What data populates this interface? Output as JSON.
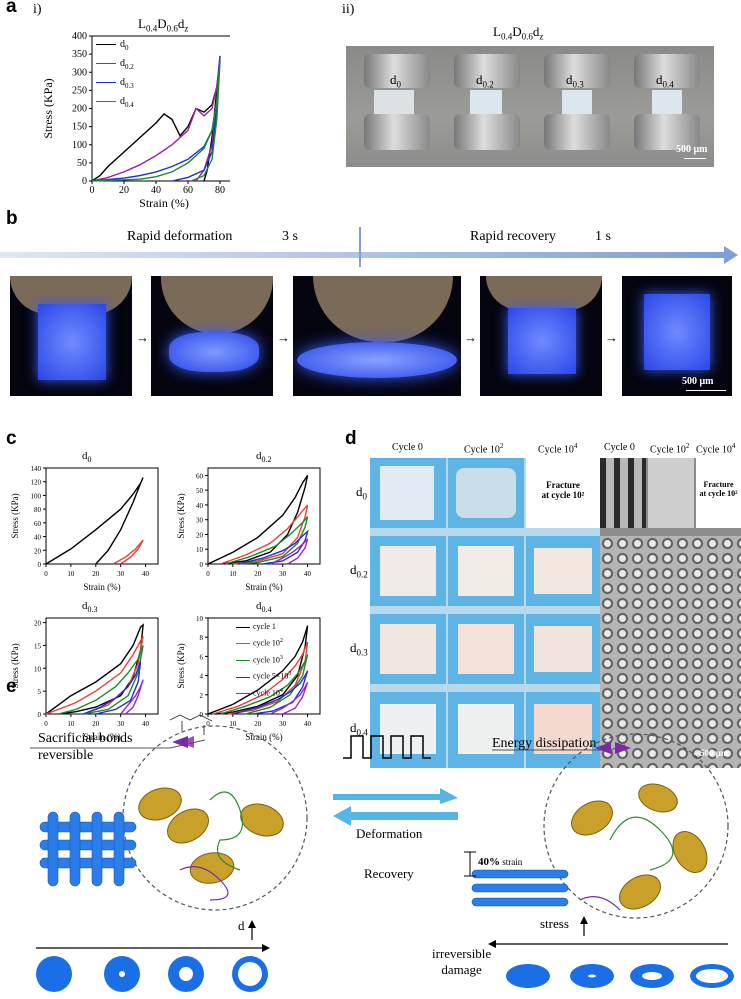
{
  "panel_a": {
    "label": "a",
    "sub_i": "i)",
    "sub_ii": "ii)",
    "title_base": "L",
    "title_sub1": "0.4",
    "title_mid": "D",
    "title_sub2": "0.6",
    "title_end": "d",
    "title_sub3": "z",
    "photo_labels": [
      {
        "base": "d",
        "sub": "0"
      },
      {
        "base": "d",
        "sub": "0.2"
      },
      {
        "base": "d",
        "sub": "0.3"
      },
      {
        "base": "d",
        "sub": "0.4"
      }
    ],
    "scale_bar": "500 μm"
  },
  "panel_b": {
    "label": "b",
    "left_text": "Rapid deformation",
    "left_time": "3 s",
    "right_text": "Rapid recovery",
    "right_time": "1 s",
    "arrow": "→",
    "scale_bar": "500 μm"
  },
  "panel_c": {
    "label": "c",
    "titles": [
      {
        "base": "d",
        "sub": "0"
      },
      {
        "base": "d",
        "sub": "0.2"
      },
      {
        "base": "d",
        "sub": "0.3"
      },
      {
        "base": "d",
        "sub": "0.4"
      }
    ],
    "legend": [
      {
        "label": "cycle 1",
        "sup": "",
        "color": "#000000"
      },
      {
        "label": "cycle 10",
        "sup": "2",
        "color": "#e8403a"
      },
      {
        "label": "cycle 10",
        "sup": "3",
        "color": "#1a8c2a"
      },
      {
        "label": "cycle 5×10",
        "sup": "3",
        "color": "#1f2fd6"
      },
      {
        "label": "cycle 10",
        "sup": "4",
        "color": "#a020d0"
      }
    ]
  },
  "panel_d": {
    "label": "d",
    "col_headers": [
      {
        "base": "Cycle 0",
        "sup": ""
      },
      {
        "base": "Cycle 10",
        "sup": "2"
      },
      {
        "base": "Cycle 10",
        "sup": "4"
      },
      {
        "base": "Cycle 0",
        "sup": ""
      },
      {
        "base": "Cycle 10",
        "sup": "2"
      },
      {
        "base": "Cycle 10",
        "sup": "4"
      }
    ],
    "row_labels": [
      {
        "base": "d",
        "sub": "0"
      },
      {
        "base": "d",
        "sub": "0.2"
      },
      {
        "base": "d",
        "sub": "0.3"
      },
      {
        "base": "d",
        "sub": "0.4"
      }
    ],
    "fracture_line1": "Fracture",
    "fracture_line2": "at cycle 10²",
    "scale_bar": "500 μm"
  },
  "panel_e": {
    "label": "e",
    "sacrificial": "Sacrificial bonds",
    "reversible": "reversible",
    "d_label": "d",
    "deformation": "Deformation",
    "recovery": "Recovery",
    "energy": "Energy dissipation",
    "strain_pct": "40%",
    "strain_word": " strain",
    "stress": "stress",
    "irreversible1": "irreversible",
    "irreversible2": "damage"
  },
  "chart_data": [
    {
      "type": "line",
      "title": "L0.4D0.6dz",
      "xlabel": "Strain (%)",
      "ylabel": "Stress (KPa)",
      "xlim": [
        0,
        90
      ],
      "ylim": [
        0,
        400
      ],
      "xticks": [
        0,
        20,
        40,
        60,
        80
      ],
      "yticks": [
        0,
        50,
        100,
        150,
        200,
        250,
        300,
        350,
        400
      ],
      "series": [
        {
          "name": "d0",
          "color": "#000000",
          "x": [
            0,
            5,
            10,
            20,
            30,
            40,
            45,
            50,
            55,
            60,
            65,
            70,
            75,
            78,
            80,
            80,
            78,
            75,
            72,
            70
          ],
          "y": [
            0,
            15,
            40,
            80,
            120,
            160,
            185,
            170,
            125,
            150,
            200,
            190,
            210,
            260,
            330,
            330,
            250,
            120,
            30,
            0
          ]
        },
        {
          "name": "d0.2",
          "color": "#a020a0",
          "x": [
            0,
            10,
            20,
            30,
            40,
            50,
            60,
            65,
            70,
            75,
            78,
            80,
            80,
            78,
            75,
            70,
            65
          ],
          "y": [
            0,
            10,
            25,
            45,
            70,
            100,
            140,
            200,
            180,
            200,
            260,
            345,
            345,
            220,
            100,
            30,
            0
          ]
        },
        {
          "name": "d0.3",
          "color": "#1f2fd6",
          "x": [
            0,
            20,
            30,
            40,
            50,
            60,
            70,
            75,
            78,
            80,
            80,
            78,
            75,
            70,
            60,
            50
          ],
          "y": [
            0,
            8,
            15,
            25,
            40,
            60,
            95,
            140,
            220,
            345,
            345,
            200,
            80,
            30,
            10,
            0
          ]
        },
        {
          "name": "d0.4",
          "color": "#1a8c2a",
          "x": [
            0,
            30,
            40,
            50,
            60,
            70,
            75,
            78,
            80,
            80,
            78,
            75,
            70,
            62
          ],
          "y": [
            0,
            5,
            12,
            25,
            50,
            90,
            140,
            220,
            330,
            330,
            170,
            60,
            15,
            0
          ]
        }
      ]
    },
    {
      "type": "line",
      "title": "d0",
      "xlabel": "Strain (%)",
      "ylabel": "Stress (KPa)",
      "xlim": [
        0,
        45
      ],
      "ylim": [
        0,
        140
      ],
      "xticks": [
        0,
        10,
        20,
        30,
        40
      ],
      "yticks": [
        0,
        20,
        40,
        60,
        80,
        100,
        120,
        140
      ],
      "series": [
        {
          "color": "#000000",
          "x": [
            0,
            10,
            20,
            30,
            35,
            38,
            39,
            38,
            35,
            30,
            25,
            20
          ],
          "y": [
            0,
            22,
            50,
            80,
            102,
            118,
            126,
            118,
            90,
            50,
            20,
            0
          ]
        },
        {
          "color": "#e8403a",
          "x": [
            27,
            32,
            36,
            39,
            39,
            37,
            34,
            30
          ],
          "y": [
            0,
            10,
            22,
            35,
            35,
            22,
            10,
            0
          ]
        }
      ]
    },
    {
      "type": "line",
      "title": "d0.2",
      "xlabel": "Strain (%)",
      "ylabel": "Stress (KPa)",
      "xlim": [
        0,
        45
      ],
      "ylim": [
        0,
        65
      ],
      "xticks": [
        0,
        10,
        20,
        30,
        40
      ],
      "yticks": [
        0,
        10,
        20,
        30,
        40,
        50,
        60
      ],
      "series": [
        {
          "color": "#000000",
          "x": [
            0,
            10,
            20,
            30,
            35,
            38,
            40,
            39,
            36,
            32,
            25,
            15,
            5
          ],
          "y": [
            0,
            8,
            18,
            33,
            45,
            55,
            60,
            52,
            35,
            20,
            8,
            2,
            0
          ]
        },
        {
          "color": "#e8403a",
          "x": [
            5,
            15,
            25,
            32,
            37,
            40,
            39,
            36,
            30,
            20,
            10
          ],
          "y": [
            0,
            6,
            14,
            24,
            34,
            40,
            32,
            18,
            7,
            2,
            0
          ]
        },
        {
          "color": "#1a8c2a",
          "x": [
            7,
            17,
            27,
            33,
            38,
            40,
            39,
            36,
            30,
            20,
            12
          ],
          "y": [
            0,
            5,
            12,
            20,
            28,
            32,
            25,
            14,
            5,
            1,
            0
          ]
        },
        {
          "color": "#1f2fd6",
          "x": [
            12,
            22,
            30,
            35,
            38,
            40,
            39,
            36,
            30,
            22
          ],
          "y": [
            0,
            4,
            9,
            14,
            19,
            22,
            16,
            8,
            2,
            0
          ]
        },
        {
          "color": "#a020d0",
          "x": [
            25,
            30,
            34,
            37,
            39,
            40,
            39,
            36,
            32
          ],
          "y": [
            0,
            4,
            8,
            12,
            15,
            17,
            11,
            4,
            0
          ]
        }
      ]
    },
    {
      "type": "line",
      "title": "d0.3",
      "xlabel": "Strain (%)",
      "ylabel": "Stress (KPa)",
      "xlim": [
        0,
        45
      ],
      "ylim": [
        0,
        21
      ],
      "xticks": [
        0,
        10,
        20,
        30,
        40
      ],
      "yticks": [
        0,
        5,
        10,
        15,
        20
      ],
      "series": [
        {
          "color": "#000000",
          "x": [
            0,
            5,
            10,
            20,
            30,
            35,
            38,
            39,
            38,
            35,
            30,
            20,
            12,
            5
          ],
          "y": [
            0,
            2,
            4,
            7,
            11,
            15,
            19,
            19.5,
            14,
            8,
            4,
            1.5,
            0.5,
            0
          ]
        },
        {
          "color": "#e8403a",
          "x": [
            0,
            5,
            12,
            20,
            30,
            35,
            38,
            39,
            37,
            33,
            25,
            15
          ],
          "y": [
            0,
            1,
            2.5,
            5,
            9,
            13,
            16,
            17,
            11,
            6,
            2,
            0
          ]
        },
        {
          "color": "#1a8c2a",
          "x": [
            5,
            12,
            20,
            28,
            33,
            37,
            39,
            37,
            33,
            25,
            15
          ],
          "y": [
            0,
            1,
            3,
            6,
            9,
            12,
            15,
            9,
            4,
            1,
            0
          ]
        },
        {
          "color": "#1f2fd6",
          "x": [
            15,
            22,
            28,
            33,
            36,
            38,
            37,
            34,
            28,
            20
          ],
          "y": [
            0,
            1.5,
            3.5,
            6,
            8.5,
            11.5,
            7,
            3,
            1,
            0
          ]
        },
        {
          "color": "#a020d0",
          "x": [
            30,
            33,
            36,
            38,
            39,
            37,
            35,
            32
          ],
          "y": [
            0,
            2,
            4,
            6,
            7.5,
            4,
            1.5,
            0
          ]
        }
      ]
    },
    {
      "type": "line",
      "title": "d0.4",
      "xlabel": "Strain (%)",
      "ylabel": "Stress (KPa)",
      "xlim": [
        0,
        45
      ],
      "ylim": [
        0,
        10
      ],
      "xticks": [
        0,
        10,
        20,
        30,
        40
      ],
      "yticks": [
        0,
        2,
        4,
        6,
        8,
        10
      ],
      "series": [
        {
          "color": "#000000",
          "x": [
            0,
            10,
            20,
            30,
            35,
            38,
            40,
            39,
            36,
            30,
            20,
            10,
            3
          ],
          "y": [
            0,
            1,
            2.5,
            4.5,
            6,
            7.5,
            9.2,
            7,
            4,
            2,
            0.8,
            0.2,
            0
          ]
        },
        {
          "color": "#e8403a",
          "x": [
            2,
            12,
            22,
            30,
            35,
            38,
            40,
            39,
            35,
            28,
            18,
            8
          ],
          "y": [
            0,
            0.8,
            2,
            3.6,
            5,
            6.2,
            7.5,
            5.5,
            3,
            1.3,
            0.4,
            0
          ]
        },
        {
          "color": "#1a8c2a",
          "x": [
            5,
            15,
            25,
            32,
            36,
            39,
            40,
            38,
            33,
            25,
            15
          ],
          "y": [
            0,
            0.8,
            1.8,
            3,
            4.2,
            5.5,
            6.2,
            4,
            2,
            0.7,
            0
          ]
        },
        {
          "color": "#1f2fd6",
          "x": [
            10,
            20,
            28,
            33,
            37,
            39,
            40,
            38,
            34,
            26,
            18
          ],
          "y": [
            0,
            0.7,
            1.5,
            2.3,
            3.2,
            4,
            4.5,
            2.8,
            1.2,
            0.3,
            0
          ]
        },
        {
          "color": "#a020d0",
          "x": [
            25,
            30,
            34,
            37,
            39,
            40,
            38,
            35,
            30
          ],
          "y": [
            0,
            0.6,
            1.3,
            2,
            2.8,
            3.3,
            1.8,
            0.6,
            0
          ]
        }
      ]
    }
  ]
}
